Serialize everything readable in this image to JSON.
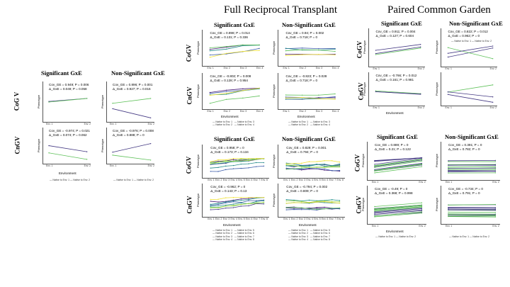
{
  "headers": {
    "full_reciprocal": "Full Reciprocal Transplant",
    "paired_common_garden": "Paired Common Garden"
  },
  "labels": {
    "significant": "Significant GxE",
    "non_significant": "Non-Significant GxE",
    "cogv": "CoGV",
    "cngv": "CnGV",
    "cogv_alt": "CoG V",
    "phenotype": "Phenotype",
    "environment": "Environment"
  },
  "legends": {
    "two_env": "— Native to Env. 1   — Native to Env. 2",
    "eight_env_a": "— Native to Env. 1   — Native to Env. 5\n— Native to Env. 2   — Native to Env. 6\n— Native to Env. 3   — Native to Env. 7\n— Native to Env. 4   — Native to Env. 8",
    "four_env": "— Native to Env. 1   — Native to Env. 3\n— Native to Env. 2   — Native to Env. 4"
  },
  "ticks": {
    "two": [
      "Env. 1",
      "Env. 2"
    ],
    "four": [
      "Env. 1",
      "Env. 2",
      "Env. 3",
      "Env. 4"
    ],
    "eight": [
      "Env. 1",
      "Env. 2",
      "Env. 3",
      "Env. 4",
      "Env. 5",
      "Env. 6",
      "Env. 7",
      "Env. 8"
    ]
  },
  "stats": {
    "left_sig_cogv": [
      "Cov_GE = 0.949; P = 0.006",
      "Δ_GxE = 0.049; P = 0.058"
    ],
    "left_ns_cogv": [
      "Cov_GE = 0.896; P = 0.001",
      "Δ_GxE = 0.927; P = 0.016"
    ],
    "left_sig_cngv": [
      "Cov_GE = -0.974; P = 0.021",
      "Δ_GxE = 0.074; P = 0.062"
    ],
    "left_ns_cngv": [
      "Cov_GE = -0.976; P = 0.008",
      "Δ_GxE = 0.888; P = 0"
    ],
    "frt4_sig_cogv": [
      "Cov_GE = 0.898; P = 0.014",
      "Δ_GxE = 0.131; P = 0.336"
    ],
    "frt4_ns_cogv": [
      "Cov_GE = 0.94; P = 0.002",
      "Δ_GxE = 0.718; P = 0"
    ],
    "frt4_sig_cngv": [
      "Cov_GE = -0.802; P = 0.008",
      "Δ_GxE = 0.128; P = 0.954"
    ],
    "frt4_ns_cngv": [
      "Cov_GE = -0.823; P = 0.028",
      "Δ_GxE = 0.718; P = 0"
    ],
    "frt8_sig_cogv": [
      "Cov_GE = 0.958; P = 0",
      "Δ_GxE = 0.173; P = 0.134"
    ],
    "frt8_ns_cogv": [
      "Cov_GE = 0.829; P = 0.001",
      "Δ_GxE = 0.794; P = 0"
    ],
    "frt8_sig_cngv": [
      "Cov_GE = -0.962; P = 0",
      "Δ_GxE = 0.143; P = 0.13"
    ],
    "frt8_ns_cngv": [
      "Cov_GE = -0.794; P = 0.002",
      "Δ_GxE = 0.809; P = 0"
    ],
    "pcg_top_sig_cogv": [
      "Cov_GE = 0.911; P = 0.004",
      "Δ_GxE = 0.127; P = 0.604"
    ],
    "pcg_top_ns_cogv": [
      "Cov_GE = 0.822; P = 0.012",
      "Δ_GxE = 0.962; P = 0"
    ],
    "pcg_top_sig_cngv": [
      "Cov_GE = -0.766; P = 0.012",
      "Δ_GxE = 0.161; P = 0.981"
    ],
    "pcg_bot_sig_cogv": [
      "Cov_GE = 0.889; P = 0",
      "Δ_GxE = 0.21; P = 0.122"
    ],
    "pcg_bot_ns_cogv": [
      "Cov_GE = 0.391; P = 0",
      "Δ_GxE = 0.782; P = 0"
    ],
    "pcg_bot_sig_cngv": [
      "Cov_GE = -0.49; P = 0",
      "Δ_GxE = 0.368; P = 0.998"
    ],
    "pcg_bot_ns_cngv": [
      "Cov_GE = -0.734; P = 0",
      "Δ_GxE = 0.791; P = 0"
    ]
  },
  "colors": {
    "purple": "#4a1e7a",
    "blue": "#3b5ba8",
    "teal": "#2a8c8c",
    "green": "#5fc15a",
    "yellow": "#f0e130",
    "lime": "#a6d84a",
    "indigo": "#443983",
    "cyan": "#21918c"
  }
}
